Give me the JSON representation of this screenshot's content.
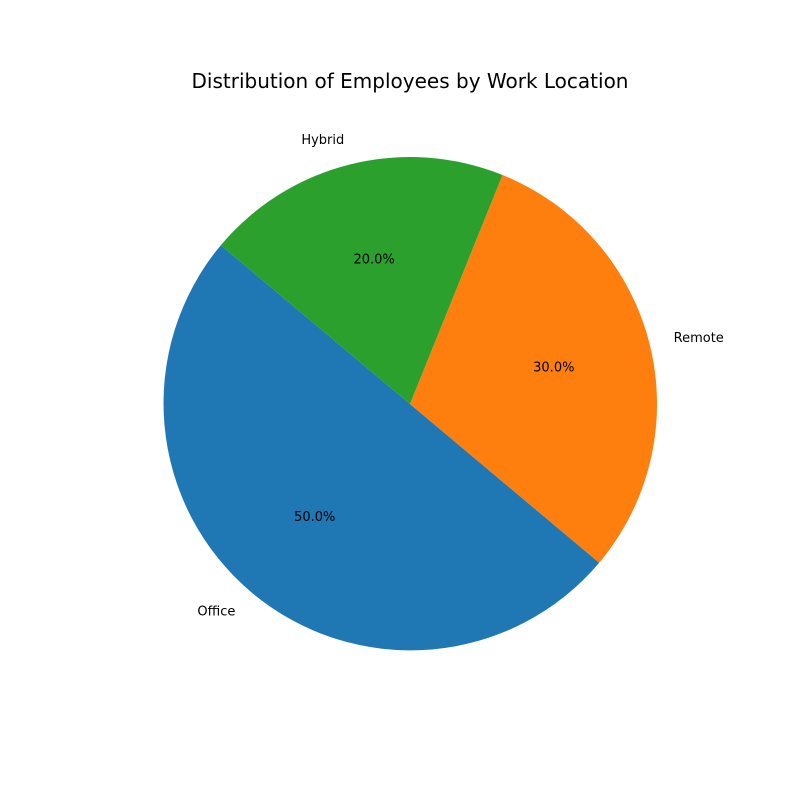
{
  "chart_data": {
    "type": "pie",
    "title": "Distribution of Employees by Work Location",
    "categories": [
      "Office",
      "Remote",
      "Hybrid"
    ],
    "values": [
      50,
      30,
      20
    ],
    "percent_labels": [
      "50.0%",
      "30.0%",
      "20.0%"
    ],
    "colors": [
      "#1f77b4",
      "#ff7f0e",
      "#2ca02c"
    ],
    "legend": "none"
  }
}
